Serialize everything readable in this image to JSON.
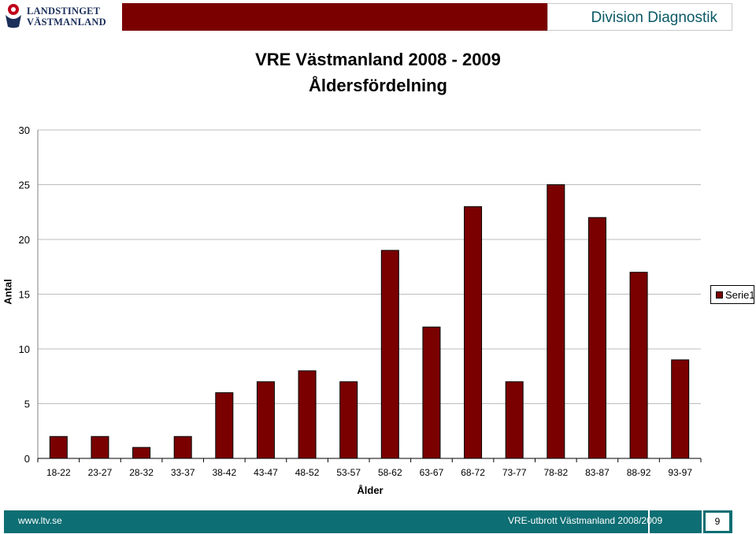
{
  "header": {
    "logo_line1": "LANDSTINGET",
    "logo_line2": "VÄSTMANLAND",
    "brand": "Division Diagnostik",
    "accent_color": "#7a0000"
  },
  "chart_data": {
    "type": "bar",
    "title_line1": "VRE Västmanland 2008 - 2009",
    "title_line2": "Åldersfördelning",
    "xlabel": "Ålder",
    "ylabel": "Antal",
    "ylim": [
      0,
      30
    ],
    "yticks": [
      0,
      5,
      10,
      15,
      20,
      25,
      30
    ],
    "grid": true,
    "legend_position": "right",
    "categories": [
      "18-22",
      "23-27",
      "28-32",
      "33-37",
      "38-42",
      "43-47",
      "48-52",
      "53-57",
      "58-62",
      "63-67",
      "68-72",
      "73-77",
      "78-82",
      "83-87",
      "88-92",
      "93-97"
    ],
    "series": [
      {
        "name": "Serie1",
        "color": "#7a0000",
        "values": [
          2,
          2,
          1,
          2,
          6,
          7,
          8,
          7,
          19,
          12,
          23,
          7,
          25,
          22,
          17,
          9
        ]
      }
    ]
  },
  "footer": {
    "url": "www.ltv.se",
    "citation": "VRE-utbrott Västmanland 2008/2009",
    "page_number": "9"
  }
}
